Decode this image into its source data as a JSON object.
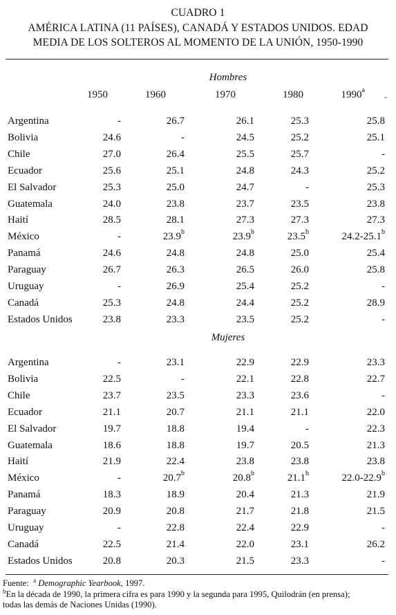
{
  "title": {
    "line1": "CUADRO 1",
    "line2": "AMÉRICA LATINA (11 PAÍSES), CANADÁ Y ESTADOS UNIDOS. EDAD",
    "line3": "MEDIA DE LOS SOLTEROS AL MOMENTO DE LA UNIÓN, 1950-1990"
  },
  "columns": [
    "1950",
    "1960",
    "1970",
    "1980",
    "1990"
  ],
  "column_last_note": "a",
  "sections": [
    {
      "name": "Hombres",
      "rows": [
        {
          "country": "Argentina",
          "values": [
            "-",
            "26.7",
            "26.1",
            "25.3",
            "25.8"
          ],
          "notes": [
            "",
            "",
            "",
            "",
            ""
          ]
        },
        {
          "country": "Bolivia",
          "values": [
            "24.6",
            "-",
            "24.5",
            "25.2",
            "25.1"
          ],
          "notes": [
            "",
            "",
            "",
            "",
            ""
          ]
        },
        {
          "country": "Chile",
          "values": [
            "27.0",
            "26.4",
            "25.5",
            "25.7",
            "-"
          ],
          "notes": [
            "",
            "",
            "",
            "",
            ""
          ]
        },
        {
          "country": "Ecuador",
          "values": [
            "25.6",
            "25.1",
            "24.8",
            "24.3",
            "25.2"
          ],
          "notes": [
            "",
            "",
            "",
            "",
            ""
          ]
        },
        {
          "country": "El Salvador",
          "values": [
            "25.3",
            "25.0",
            "24.7",
            "-",
            "25.3"
          ],
          "notes": [
            "",
            "",
            "",
            "",
            ""
          ]
        },
        {
          "country": "Guatemala",
          "values": [
            "24.0",
            "23.8",
            "23.7",
            "23.5",
            "23.8"
          ],
          "notes": [
            "",
            "",
            "",
            "",
            ""
          ]
        },
        {
          "country": "Haití",
          "values": [
            "28.5",
            "28.1",
            "27.3",
            "27.3",
            "27.3"
          ],
          "notes": [
            "",
            "",
            "",
            "",
            ""
          ]
        },
        {
          "country": "México",
          "values": [
            "-",
            "23.9",
            "23.9",
            "23.5",
            "24.2-25.1"
          ],
          "notes": [
            "",
            "b",
            "b",
            "b",
            "b"
          ]
        },
        {
          "country": "Panamá",
          "values": [
            "24.6",
            "24.8",
            "24.8",
            "25.0",
            "25.4"
          ],
          "notes": [
            "",
            "",
            "",
            "",
            ""
          ]
        },
        {
          "country": "Paraguay",
          "values": [
            "26.7",
            "26.3",
            "26.5",
            "26.0",
            "25.8"
          ],
          "notes": [
            "",
            "",
            "",
            "",
            ""
          ]
        },
        {
          "country": "Uruguay",
          "values": [
            "-",
            "26.9",
            "25.4",
            "25.2",
            "-"
          ],
          "notes": [
            "",
            "",
            "",
            "",
            ""
          ]
        },
        {
          "country": "Canadá",
          "values": [
            "25.3",
            "24.8",
            "24.4",
            "25.2",
            "28.9"
          ],
          "notes": [
            "",
            "",
            "",
            "",
            ""
          ]
        },
        {
          "country": "Estados Unidos",
          "values": [
            "23.8",
            "23.3",
            "23.5",
            "25.2",
            "-"
          ],
          "notes": [
            "",
            "",
            "",
            "",
            ""
          ]
        }
      ]
    },
    {
      "name": "Mujeres",
      "rows": [
        {
          "country": "Argentina",
          "values": [
            "-",
            "23.1",
            "22.9",
            "22.9",
            "23.3"
          ],
          "notes": [
            "",
            "",
            "",
            "",
            ""
          ]
        },
        {
          "country": "Bolivia",
          "values": [
            "22.5",
            "-",
            "22.1",
            "22.8",
            "22.7"
          ],
          "notes": [
            "",
            "",
            "",
            "",
            ""
          ]
        },
        {
          "country": "Chile",
          "values": [
            "23.7",
            "23.5",
            "23.3",
            "23.6",
            "-"
          ],
          "notes": [
            "",
            "",
            "",
            "",
            ""
          ]
        },
        {
          "country": "Ecuador",
          "values": [
            "21.1",
            "20.7",
            "21.1",
            "21.1",
            "22.0"
          ],
          "notes": [
            "",
            "",
            "",
            "",
            ""
          ]
        },
        {
          "country": "El Salvador",
          "values": [
            "19.7",
            "18.8",
            "19.4",
            "-",
            "22.3"
          ],
          "notes": [
            "",
            "",
            "",
            "",
            ""
          ]
        },
        {
          "country": "Guatemala",
          "values": [
            "18.6",
            "18.8",
            "19.7",
            "20.5",
            "21.3"
          ],
          "notes": [
            "",
            "",
            "",
            "",
            ""
          ]
        },
        {
          "country": "Haití",
          "values": [
            "21.9",
            "22.4",
            "23.8",
            "23.8",
            "23.8"
          ],
          "notes": [
            "",
            "",
            "",
            "",
            ""
          ]
        },
        {
          "country": "México",
          "values": [
            "-",
            "20.7",
            "20.8",
            "21.1",
            "22.0-22.9"
          ],
          "notes": [
            "",
            "b",
            "b",
            "b",
            "b"
          ]
        },
        {
          "country": "Panamá",
          "values": [
            "18.3",
            "18.9",
            "20.4",
            "21.3",
            "21.9"
          ],
          "notes": [
            "",
            "",
            "",
            "",
            ""
          ]
        },
        {
          "country": "Paraguay",
          "values": [
            "20.9",
            "20.8",
            "21.7",
            "21.8",
            "21.5"
          ],
          "notes": [
            "",
            "",
            "",
            "",
            ""
          ]
        },
        {
          "country": "Uruguay",
          "values": [
            "-",
            "22.8",
            "22.4",
            "22.9",
            "-"
          ],
          "notes": [
            "",
            "",
            "",
            "",
            ""
          ]
        },
        {
          "country": "Canadá",
          "values": [
            "22.5",
            "21.4",
            "22.0",
            "23.1",
            "26.2"
          ],
          "notes": [
            "",
            "",
            "",
            "",
            ""
          ]
        },
        {
          "country": "Estados Unidos",
          "values": [
            "20.8",
            "20.3",
            "21.5",
            "23.3",
            "-"
          ],
          "notes": [
            "",
            "",
            "",
            "",
            ""
          ]
        }
      ]
    }
  ],
  "footnotes": {
    "source_label": "Fuente:",
    "a_mark": "a",
    "a_text": "Demographic Yearbook",
    "a_tail": ", 1997.",
    "b_mark": "b",
    "b_text_line1": "En la década de 1990, la primera cifra es para 1990 y la segunda para 1995, Quilodrán (en prensa);",
    "b_text_line2": "todas las demás de Naciones Unidas (1990)."
  }
}
